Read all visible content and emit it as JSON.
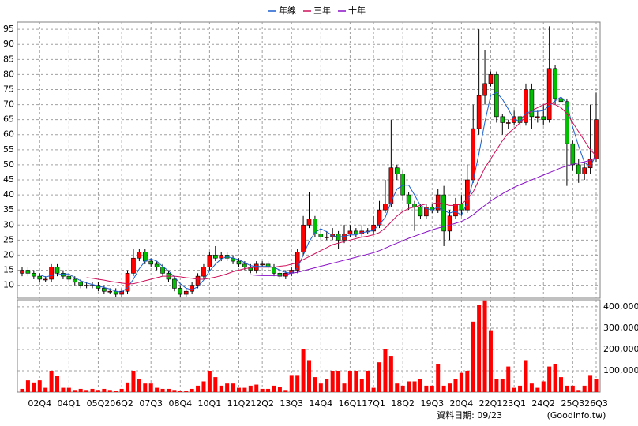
{
  "chart_data": {
    "type": "candlestick",
    "categories": [
      null,
      null,
      null,
      "02Q4",
      null,
      null,
      null,
      null,
      "04Q1",
      null,
      null,
      null,
      null,
      "05Q2",
      null,
      null,
      null,
      "06Q2",
      null,
      null,
      null,
      null,
      "07Q3",
      null,
      null,
      null,
      null,
      "08Q4",
      null,
      null,
      null,
      null,
      "10Q1",
      null,
      null,
      null,
      null,
      "11Q2",
      null,
      null,
      null,
      "12Q2",
      null,
      null,
      null,
      null,
      "13Q3",
      null,
      null,
      null,
      null,
      "14Q4",
      null,
      null,
      null,
      null,
      "16Q1",
      null,
      null,
      null,
      "17Q1",
      null,
      null,
      null,
      null,
      "18Q2",
      null,
      null,
      null,
      null,
      "19Q3",
      null,
      null,
      null,
      null,
      "20Q4",
      null,
      null,
      null,
      null,
      "22Q1",
      null,
      null,
      null,
      "23Q1",
      null,
      null,
      null,
      null,
      "24Q2",
      null,
      null,
      null,
      null,
      "25Q3",
      null,
      null,
      null,
      "26Q3"
    ],
    "open": [
      14,
      15,
      14,
      13,
      12,
      12,
      16,
      14,
      13,
      12,
      11,
      10,
      10,
      10,
      9,
      8,
      8,
      7,
      8,
      14,
      19,
      21,
      18,
      17,
      16,
      14,
      12,
      9,
      7,
      8,
      10,
      13,
      16,
      20,
      19,
      20,
      19,
      18,
      17,
      16,
      15,
      17,
      17,
      16,
      14,
      13,
      14,
      15,
      21,
      30,
      32,
      27,
      26,
      26,
      27,
      25,
      27,
      28,
      27,
      28,
      28,
      30,
      35,
      37,
      49,
      47,
      40,
      37,
      36,
      33,
      36,
      35,
      40,
      28,
      33,
      37,
      35,
      45,
      62,
      73,
      77,
      80,
      66,
      64,
      64,
      66,
      64,
      75,
      66,
      66,
      65,
      82,
      72,
      71,
      57,
      50,
      47,
      49,
      52
    ],
    "high": [
      16,
      16,
      15,
      14,
      13,
      17,
      17,
      15,
      14,
      13,
      12,
      11,
      11,
      11,
      10,
      9,
      9,
      9,
      15,
      22,
      22,
      22,
      19,
      18,
      17,
      15,
      13,
      10,
      9,
      11,
      14,
      17,
      21,
      23,
      21,
      21,
      20,
      19,
      18,
      17,
      18,
      18,
      18,
      17,
      15,
      15,
      16,
      22,
      33,
      41,
      33,
      29,
      28,
      29,
      28,
      30,
      30,
      29,
      30,
      29,
      33,
      38,
      45,
      65,
      50,
      48,
      41,
      38,
      37,
      37,
      37,
      42,
      43,
      35,
      39,
      40,
      50,
      70,
      95,
      88,
      81,
      81,
      67,
      65,
      68,
      67,
      77,
      77,
      68,
      70,
      96,
      83,
      75,
      72,
      58,
      52,
      51,
      70,
      74
    ],
    "low": [
      13,
      13,
      12,
      11,
      11,
      11,
      13,
      12,
      11,
      10,
      9,
      9,
      9,
      8,
      7,
      7,
      6,
      6,
      7,
      13,
      18,
      17,
      16,
      15,
      13,
      11,
      8,
      6,
      6,
      7,
      9,
      12,
      15,
      18,
      18,
      18,
      17,
      16,
      15,
      14,
      14,
      16,
      15,
      13,
      12,
      12,
      13,
      14,
      20,
      29,
      26,
      25,
      25,
      25,
      22,
      24,
      26,
      26,
      26,
      27,
      27,
      29,
      34,
      36,
      45,
      38,
      35,
      28,
      32,
      32,
      34,
      34,
      23,
      25,
      32,
      33,
      34,
      44,
      60,
      70,
      76,
      64,
      60,
      62,
      63,
      62,
      63,
      62,
      64,
      63,
      64,
      70,
      70,
      43,
      48,
      44,
      45,
      47,
      51
    ],
    "close": [
      15,
      14,
      13,
      12,
      12,
      16,
      14,
      13,
      12,
      11,
      10,
      10,
      10,
      9,
      8,
      8,
      7,
      8,
      14,
      19,
      21,
      18,
      17,
      16,
      14,
      12,
      9,
      7,
      8,
      10,
      13,
      16,
      20,
      19,
      20,
      19,
      18,
      17,
      16,
      15,
      17,
      17,
      16,
      14,
      13,
      14,
      15,
      21,
      30,
      32,
      27,
      26,
      26,
      27,
      25,
      27,
      28,
      27,
      28,
      28,
      30,
      35,
      37,
      49,
      47,
      40,
      37,
      36,
      33,
      36,
      35,
      40,
      28,
      33,
      37,
      35,
      45,
      62,
      73,
      77,
      80,
      66,
      64,
      64,
      66,
      64,
      75,
      66,
      66,
      65,
      82,
      72,
      71,
      57,
      50,
      47,
      49,
      52,
      65
    ],
    "up_color": "#ff0000",
    "down_color": "#00c000",
    "series": [
      {
        "name": "年線",
        "color": "#1a5fd0",
        "values": [
          null,
          null,
          null,
          13.5,
          12.75,
          13.25,
          13.5,
          13.75,
          13.75,
          12.5,
          11.5,
          10.75,
          10.25,
          9.75,
          9.25,
          8.75,
          8,
          7.75,
          9.25,
          12,
          15.5,
          18,
          18.75,
          18,
          16.25,
          14.75,
          12.75,
          10.5,
          9,
          8.5,
          9.5,
          11.75,
          14.75,
          17,
          18.75,
          19.5,
          19,
          18.5,
          17.5,
          16.5,
          16.25,
          16.25,
          16.25,
          16,
          15,
          14.25,
          14,
          15.75,
          20,
          24.5,
          27.5,
          28.75,
          27.75,
          26.5,
          26,
          26.25,
          26.75,
          26.75,
          27.5,
          27.75,
          28.25,
          30.25,
          32.5,
          37.75,
          42,
          43.25,
          43.25,
          40,
          36.5,
          35.5,
          35,
          36,
          34.75,
          34,
          34.5,
          33.25,
          37.5,
          44.75,
          53.75,
          64.25,
          73,
          74,
          71.75,
          68.5,
          65,
          64.5,
          67.25,
          67.75,
          67.75,
          68,
          69.75,
          71.25,
          72.5,
          70.5,
          62.5,
          56.25,
          50.75,
          49.5,
          53.25
        ]
      },
      {
        "name": "三年",
        "color": "#d0105a",
        "values": [
          null,
          null,
          null,
          null,
          null,
          null,
          null,
          null,
          null,
          null,
          null,
          12.5,
          12.3,
          12,
          11.7,
          11.3,
          11,
          10.7,
          10.5,
          10.5,
          11,
          11.5,
          12,
          12.5,
          13,
          13,
          13,
          12.8,
          12.5,
          12.3,
          12,
          12,
          12.3,
          12.7,
          13.2,
          13.8,
          14.5,
          15,
          15.5,
          15.8,
          16,
          16,
          16,
          16,
          16.3,
          16.5,
          17,
          17.5,
          18.5,
          19.5,
          20.5,
          21.5,
          22.5,
          23.5,
          24,
          24.5,
          25,
          25.5,
          26,
          26.3,
          26.8,
          27.5,
          29,
          31,
          33,
          34.5,
          35.5,
          36,
          36.5,
          37,
          37,
          37.5,
          37,
          36.5,
          36.5,
          37,
          38.5,
          41,
          45,
          49,
          52,
          55,
          58,
          60.5,
          62,
          64,
          66,
          68,
          69,
          70,
          70.5,
          70,
          69,
          67,
          64,
          61,
          58,
          55,
          53
        ]
      },
      {
        "name": "十年",
        "color": "#8a10c8",
        "values": [
          null,
          null,
          null,
          null,
          null,
          null,
          null,
          null,
          null,
          null,
          null,
          null,
          null,
          null,
          null,
          null,
          null,
          null,
          null,
          null,
          null,
          null,
          null,
          null,
          null,
          null,
          null,
          null,
          null,
          null,
          null,
          null,
          null,
          null,
          null,
          null,
          null,
          null,
          null,
          13.5,
          13.3,
          13.2,
          13.2,
          13.2,
          13.3,
          13.5,
          14,
          14.3,
          14.8,
          15.3,
          15.8,
          16.3,
          16.8,
          17.3,
          17.8,
          18.3,
          18.8,
          19.3,
          19.8,
          20.3,
          20.8,
          21.5,
          22.3,
          23.2,
          24,
          24.8,
          25.6,
          26.3,
          27,
          27.7,
          28.4,
          29,
          29.5,
          30,
          30.6,
          31.2,
          32.2,
          33.4,
          35,
          36.5,
          38,
          39.2,
          40.4,
          41.5,
          42.5,
          43.4,
          44.2,
          45,
          45.8,
          46.6,
          47.4,
          48.2,
          49,
          49.6,
          50.2,
          50.6,
          51,
          51.5,
          52.5
        ]
      }
    ],
    "ylim": [
      5.7,
      97.4
    ],
    "yticks": [
      10,
      15,
      20,
      25,
      30,
      35,
      40,
      45,
      50,
      55,
      60,
      65,
      70,
      75,
      80,
      85,
      90,
      95
    ],
    "volume": {
      "color": "#ff0000",
      "values": [
        15000,
        55000,
        45000,
        55000,
        20000,
        100000,
        75000,
        20000,
        20000,
        10000,
        15000,
        10000,
        15000,
        10000,
        15000,
        10000,
        5000,
        15000,
        45000,
        100000,
        60000,
        40000,
        40000,
        20000,
        15000,
        15000,
        10000,
        5000,
        5000,
        15000,
        30000,
        50000,
        100000,
        70000,
        30000,
        40000,
        40000,
        20000,
        20000,
        30000,
        35000,
        15000,
        15000,
        30000,
        25000,
        10000,
        80000,
        80000,
        200000,
        150000,
        70000,
        40000,
        60000,
        100000,
        100000,
        40000,
        100000,
        100000,
        60000,
        100000,
        20000,
        140000,
        200000,
        170000,
        40000,
        30000,
        50000,
        50000,
        60000,
        30000,
        30000,
        130000,
        30000,
        40000,
        60000,
        90000,
        100000,
        330000,
        410000,
        430000,
        290000,
        60000,
        60000,
        120000,
        20000,
        30000,
        150000,
        40000,
        20000,
        50000,
        120000,
        130000,
        70000,
        30000,
        30000,
        10000,
        30000,
        80000,
        60000
      ],
      "ylim": [
        0,
        433000
      ],
      "yticks": [
        {
          "value": 100000,
          "label": "100,000"
        },
        {
          "value": 200000,
          "label": "200,000"
        },
        {
          "value": 300000,
          "label": "300,000"
        },
        {
          "value": 400000,
          "label": "400,000"
        }
      ]
    },
    "grid": true,
    "legend": "top",
    "footer": "資料日期: 09/23",
    "source": "(Goodinfo.tw)"
  }
}
